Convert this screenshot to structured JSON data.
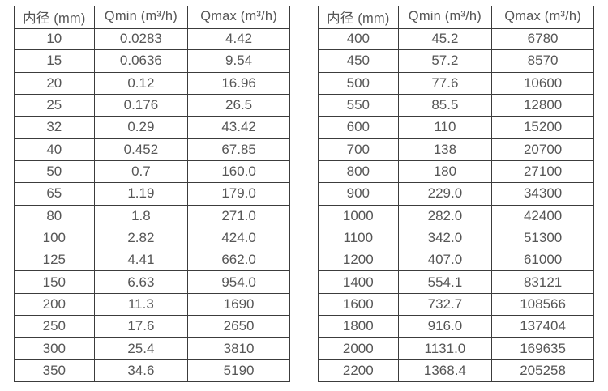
{
  "page": {
    "description": "Flow meter inner diameter vs minimum and maximum flow range specification tables",
    "colors": {
      "background": "#ffffff",
      "border": "#3c3c3c",
      "text": "#565656"
    }
  },
  "chart_data": [
    {
      "type": "table",
      "name": "flow-range-table-small-diameters",
      "columns": [
        "内径 (mm)",
        "Qmin (m³/h)",
        "Qmax (m³/h)"
      ],
      "rows": [
        [
          "10",
          "0.0283",
          "4.42"
        ],
        [
          "15",
          "0.0636",
          "9.54"
        ],
        [
          "20",
          "0.12",
          "16.96"
        ],
        [
          "25",
          "0.176",
          "26.5"
        ],
        [
          "32",
          "0.29",
          "43.42"
        ],
        [
          "40",
          "0.452",
          "67.85"
        ],
        [
          "50",
          "0.7",
          "160.0"
        ],
        [
          "65",
          "1.19",
          "179.0"
        ],
        [
          "80",
          "1.8",
          "271.0"
        ],
        [
          "100",
          "2.82",
          "424.0"
        ],
        [
          "125",
          "4.41",
          "662.0"
        ],
        [
          "150",
          "6.63",
          "954.0"
        ],
        [
          "200",
          "11.3",
          "1690"
        ],
        [
          "250",
          "17.6",
          "2650"
        ],
        [
          "300",
          "25.4",
          "3810"
        ],
        [
          "350",
          "34.6",
          "5190"
        ]
      ]
    },
    {
      "type": "table",
      "name": "flow-range-table-large-diameters",
      "columns": [
        "内径 (mm)",
        "Qmin (m³/h)",
        "Qmax (m³/h)"
      ],
      "rows": [
        [
          "400",
          "45.2",
          "6780"
        ],
        [
          "450",
          "57.2",
          "8570"
        ],
        [
          "500",
          "77.6",
          "10600"
        ],
        [
          "550",
          "85.5",
          "12800"
        ],
        [
          "600",
          "110",
          "15200"
        ],
        [
          "700",
          "138",
          "20700"
        ],
        [
          "800",
          "180",
          "27100"
        ],
        [
          "900",
          "229.0",
          "34300"
        ],
        [
          "1000",
          "282.0",
          "42400"
        ],
        [
          "1100",
          "342.0",
          "51300"
        ],
        [
          "1200",
          "407.0",
          "61000"
        ],
        [
          "1400",
          "554.1",
          "83121"
        ],
        [
          "1600",
          "732.7",
          "108566"
        ],
        [
          "1800",
          "916.0",
          "137404"
        ],
        [
          "2000",
          "1131.0",
          "169635"
        ],
        [
          "2200",
          "1368.4",
          "205258"
        ]
      ]
    }
  ]
}
